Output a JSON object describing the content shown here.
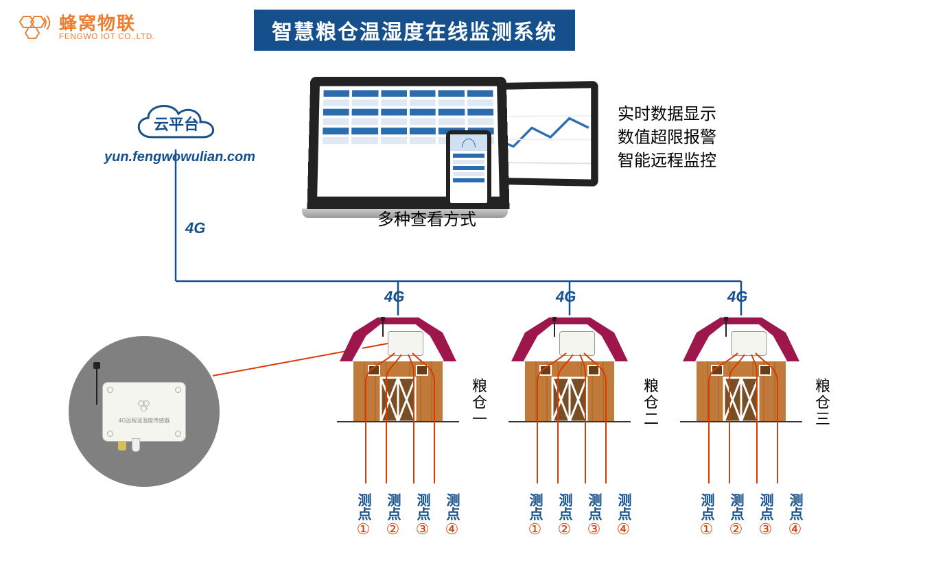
{
  "brand": {
    "cn": "蜂窝物联",
    "en": "FENGWO IOT CO.,LTD.",
    "color": "#ed7d31"
  },
  "title": "智慧粮仓温湿度在线监测系统",
  "title_bg": "#15508c",
  "title_fg": "#ffffff",
  "cloud": {
    "label": "云平台",
    "url": "yun.fengwowulian.com"
  },
  "network_label": "4G",
  "devices_caption": "多种查看方式",
  "features": [
    "实时数据显示",
    "数值超限报警",
    "智能远程监控"
  ],
  "barns": [
    {
      "name": "粮仓一",
      "points": [
        "测点",
        "测点",
        "测点",
        "测点"
      ],
      "nums": [
        "①",
        "②",
        "③",
        "④"
      ]
    },
    {
      "name": "粮仓二",
      "points": [
        "测点",
        "测点",
        "测点",
        "测点"
      ],
      "nums": [
        "①",
        "②",
        "③",
        "④"
      ]
    },
    {
      "name": "粮仓三",
      "points": [
        "测点",
        "测点",
        "测点",
        "测点"
      ],
      "nums": [
        "①",
        "②",
        "③",
        "④"
      ]
    }
  ],
  "barn_colors": {
    "roof": "#9d174d",
    "roof_trim": "#ffffff",
    "wall": "#c07a3a",
    "wall_dark": "#a5632b",
    "door": "#7a4e24"
  },
  "line_color": "#15508c",
  "probe_color": "#d83b01",
  "sensor_text": "4G远程温湿度传感器"
}
